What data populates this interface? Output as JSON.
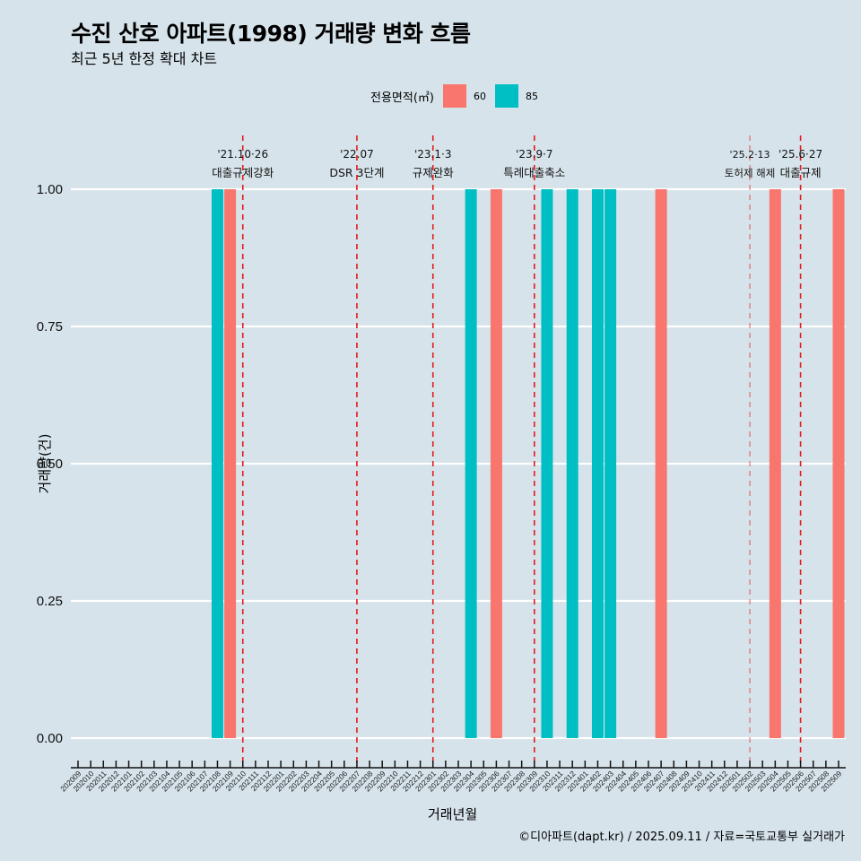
{
  "header": {
    "title": "수진 산호 아파트(1998) 거래량 변화 흐름",
    "subtitle": "최근 5년 한정 확대 차트"
  },
  "legend": {
    "title": "전용면적(㎡)",
    "items": [
      {
        "label": "60",
        "color": "#f8766d"
      },
      {
        "label": "85",
        "color": "#00bfc4"
      }
    ]
  },
  "caption": "©디아파트(dapt.kr) / 2025.09.11 / 자료=국토교통부 실거래가",
  "chart_data": {
    "type": "bar",
    "title": "수진 산호 아파트(1998) 거래량 변화 흐름",
    "subtitle": "최근 5년 한정 확대 차트",
    "xlabel": "거래년월",
    "ylabel": "거래량(건)",
    "ylim": [
      0,
      1
    ],
    "yticks": [
      "0.00",
      "0.25",
      "0.50",
      "0.75",
      "1.00"
    ],
    "yticks_values": [
      0,
      0.25,
      0.5,
      0.75,
      1.0
    ],
    "grid": true,
    "legend_position": "top",
    "categories": [
      "202009",
      "202010",
      "202011",
      "202012",
      "202101",
      "202102",
      "202103",
      "202104",
      "202105",
      "202106",
      "202107",
      "202108",
      "202109",
      "202110",
      "202111",
      "202112",
      "202201",
      "202202",
      "202203",
      "202204",
      "202205",
      "202206",
      "202207",
      "202208",
      "202209",
      "202210",
      "202211",
      "202212",
      "202301",
      "202302",
      "202303",
      "202304",
      "202305",
      "202306",
      "202307",
      "202308",
      "202309",
      "202310",
      "202311",
      "202312",
      "202401",
      "202402",
      "202403",
      "202404",
      "202405",
      "202406",
      "202407",
      "202408",
      "202409",
      "202410",
      "202411",
      "202412",
      "202501",
      "202502",
      "202503",
      "202504",
      "202505",
      "202506",
      "202507",
      "202508",
      "202509"
    ],
    "series": [
      {
        "name": "60",
        "color": "#f8766d",
        "points": [
          {
            "x": "202109",
            "y": 1
          },
          {
            "x": "202306",
            "y": 1
          },
          {
            "x": "202407",
            "y": 1
          },
          {
            "x": "202504",
            "y": 1
          },
          {
            "x": "202509",
            "y": 1
          }
        ]
      },
      {
        "name": "85",
        "color": "#00bfc4",
        "points": [
          {
            "x": "202108",
            "y": 1
          },
          {
            "x": "202304",
            "y": 1
          },
          {
            "x": "202310",
            "y": 1
          },
          {
            "x": "202312",
            "y": 1
          },
          {
            "x": "202402",
            "y": 1
          },
          {
            "x": "202403",
            "y": 1
          }
        ]
      }
    ],
    "annotations": [
      {
        "x": "202110",
        "date": "'21.10·26",
        "label": "대출규제강화",
        "color": "#e41a1c",
        "faded": false
      },
      {
        "x": "202207",
        "date": "'22.07",
        "label": "DSR 3단계",
        "color": "#e41a1c",
        "faded": false
      },
      {
        "x": "202301",
        "date": "'23.1·3",
        "label": "규제완화",
        "color": "#e41a1c",
        "faded": false
      },
      {
        "x": "202309",
        "date": "'23.9·7",
        "label": "특례대출축소",
        "color": "#e41a1c",
        "faded": false
      },
      {
        "x": "202502",
        "date": "'25.2·13",
        "label": "토허제 해제",
        "color": "#e41a1c",
        "faded": true
      },
      {
        "x": "202506",
        "date": "'25.6·27",
        "label": "대출규제",
        "color": "#e41a1c",
        "faded": false
      }
    ]
  }
}
